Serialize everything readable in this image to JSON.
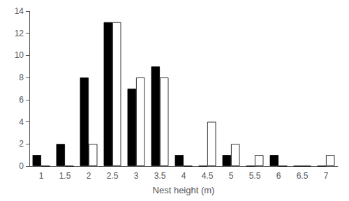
{
  "chart_data": {
    "type": "bar",
    "xlabel": "Nest height (m)",
    "categories": [
      "1",
      "1.5",
      "2",
      "2.5",
      "3",
      "3.5",
      "4",
      "4.5",
      "5",
      "5.5",
      "6",
      "6.5",
      "7"
    ],
    "series": [
      {
        "color": "#000000",
        "values": [
          1,
          2,
          8,
          13,
          7,
          9,
          1,
          0,
          1,
          0,
          1,
          0,
          0
        ]
      },
      {
        "color": "#ffffff",
        "values": [
          0,
          0,
          2,
          13,
          8,
          8,
          0,
          4,
          2,
          1,
          0,
          0,
          1
        ]
      }
    ],
    "ylim": [
      0,
      14
    ],
    "yticks": [
      0,
      2,
      4,
      6,
      8,
      10,
      12,
      14
    ],
    "grid": false
  }
}
